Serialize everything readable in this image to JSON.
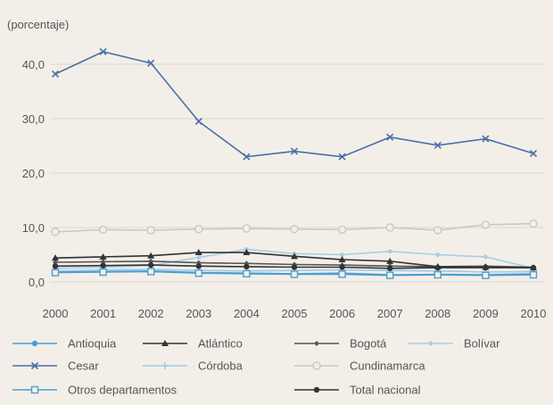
{
  "chart_data": {
    "type": "line",
    "unit_label": "(porcentaje)",
    "x": [
      "2000",
      "2001",
      "2002",
      "2003",
      "2004",
      "2005",
      "2006",
      "2007",
      "2008",
      "2009",
      "2010"
    ],
    "ylim": [
      0,
      42
    ],
    "yticks": [
      "0,0",
      "10,0",
      "20,0",
      "30,0",
      "40,0"
    ],
    "ytick_values": [
      0,
      10,
      20,
      30,
      40
    ],
    "grid": "horizontal",
    "legend_position": "bottom",
    "series": [
      {
        "name": "Antioquia",
        "color": "#4a9ed6",
        "marker": "circle",
        "values": [
          1.8,
          1.9,
          2.0,
          1.7,
          1.6,
          1.5,
          1.6,
          1.3,
          1.4,
          1.3,
          1.5
        ]
      },
      {
        "name": "Atlántico",
        "color": "#333333",
        "marker": "triangle",
        "values": [
          4.4,
          4.6,
          4.8,
          5.4,
          5.4,
          4.7,
          4.1,
          3.8,
          2.8,
          2.7,
          2.6
        ]
      },
      {
        "name": "Bogotá",
        "color": "#555555",
        "marker": "diamond",
        "values": [
          3.6,
          3.7,
          3.8,
          3.5,
          3.4,
          3.2,
          3.1,
          2.9,
          2.8,
          2.9,
          2.7
        ]
      },
      {
        "name": "Bolívar",
        "color": "#a9cde8",
        "marker": "dot",
        "values": [
          2.5,
          2.7,
          3.0,
          4.5,
          6.0,
          5.2,
          5.0,
          5.6,
          5.0,
          4.6,
          2.5
        ]
      },
      {
        "name": "Cesar",
        "color": "#4a6fa8",
        "marker": "x",
        "values": [
          38.2,
          42.3,
          40.2,
          29.5,
          23.0,
          24.0,
          23.0,
          26.6,
          25.1,
          26.3,
          23.6
        ]
      },
      {
        "name": "Córdoba",
        "color": "#9ccbe9",
        "marker": "plus",
        "values": [
          2.0,
          2.2,
          2.3,
          2.1,
          2.0,
          2.1,
          2.2,
          2.1,
          2.0,
          1.8,
          1.9
        ]
      },
      {
        "name": "Cundinamarca",
        "color": "#c8c8c8",
        "marker": "open-circle",
        "values": [
          9.2,
          9.6,
          9.5,
          9.7,
          9.8,
          9.7,
          9.6,
          10.0,
          9.5,
          10.5,
          10.7
        ]
      },
      {
        "name": "Otros departamentos",
        "color": "#4a9ed6",
        "marker": "open-square",
        "values": [
          1.7,
          1.8,
          1.9,
          1.6,
          1.5,
          1.4,
          1.4,
          1.2,
          1.3,
          1.2,
          1.3
        ]
      },
      {
        "name": "Total nacional",
        "color": "#333333",
        "marker": "circle",
        "values": [
          2.9,
          3.0,
          3.1,
          2.9,
          2.8,
          2.7,
          2.7,
          2.5,
          2.6,
          2.6,
          2.6
        ]
      }
    ]
  }
}
